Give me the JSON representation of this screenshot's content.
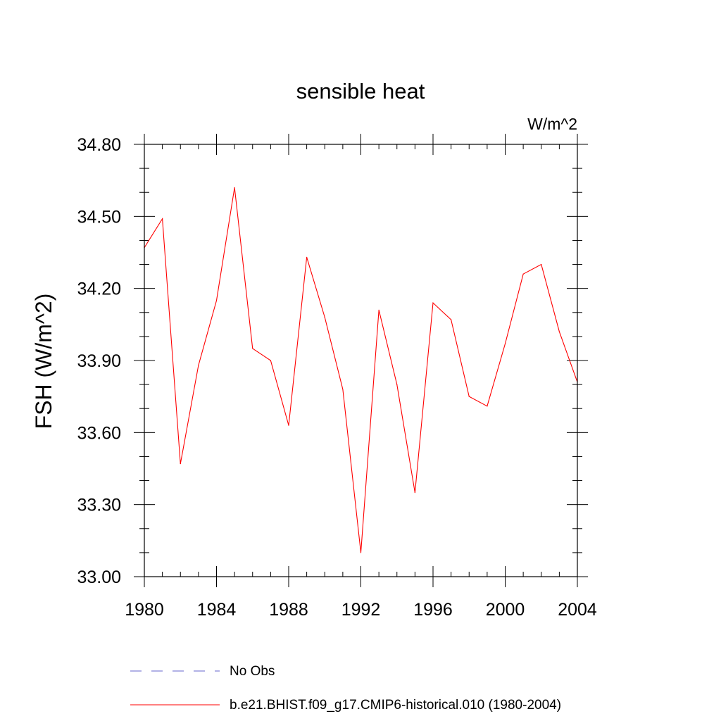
{
  "chart_data": {
    "type": "line",
    "title": "sensible heat",
    "units_label": "W/m^2",
    "ylabel": "FSH  (W/m^2)",
    "xlabel": "",
    "xlim": [
      1980,
      2004
    ],
    "ylim": [
      33.0,
      34.8
    ],
    "x_ticks": [
      1980,
      1984,
      1988,
      1992,
      1996,
      2000,
      2004
    ],
    "x_tick_labels": [
      "1980",
      "1984",
      "1988",
      "1992",
      "1996",
      "2000",
      "2004"
    ],
    "y_ticks": [
      33.0,
      33.3,
      33.6,
      33.9,
      34.2,
      34.5,
      34.8
    ],
    "y_tick_labels": [
      "33.00",
      "33.30",
      "33.60",
      "33.90",
      "34.20",
      "34.50",
      "34.80"
    ],
    "grid": false,
    "legend_position": "bottom",
    "x": [
      1980,
      1981,
      1982,
      1983,
      1984,
      1985,
      1986,
      1987,
      1988,
      1989,
      1990,
      1991,
      1992,
      1993,
      1994,
      1995,
      1996,
      1997,
      1998,
      1999,
      2000,
      2001,
      2002,
      2003,
      2004
    ],
    "series": [
      {
        "name": "b.e21.BHIST.f09_g17.CMIP6-historical.010 (1980-2004)",
        "color": "#ff0000",
        "style": "solid",
        "values": [
          34.37,
          34.49,
          33.47,
          33.88,
          34.15,
          34.62,
          33.95,
          33.9,
          33.63,
          34.33,
          34.08,
          33.78,
          33.1,
          34.11,
          33.8,
          33.35,
          34.14,
          34.07,
          33.75,
          33.71,
          33.97,
          34.26,
          34.3,
          34.02,
          33.81
        ]
      }
    ],
    "legend": [
      {
        "label": "No Obs",
        "color": "#6666cc",
        "style": "dashed"
      },
      {
        "label": "b.e21.BHIST.f09_g17.CMIP6-historical.010 (1980-2004)",
        "color": "#ff0000",
        "style": "solid"
      }
    ]
  }
}
